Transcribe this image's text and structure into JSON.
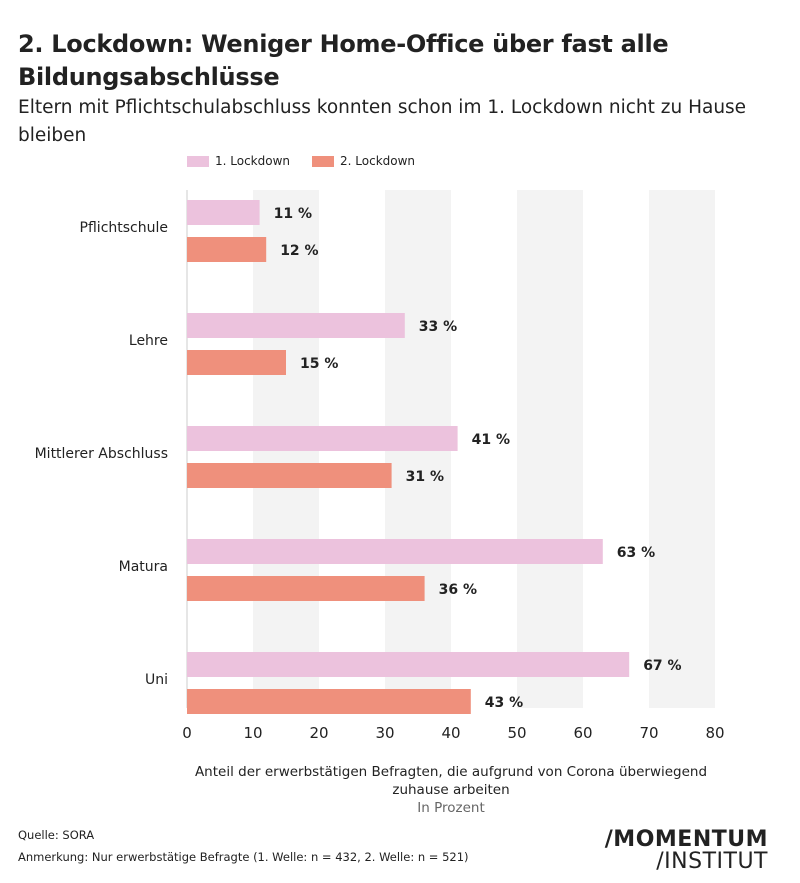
{
  "chart_data": {
    "type": "bar",
    "orientation": "horizontal",
    "title": "2. Lockdown: Weniger Home-Office über fast alle Bildungsabschlüsse",
    "subtitle": "Eltern mit Pflichtschulabschluss konnten schon im 1. Lockdown nicht zu Hause bleiben",
    "categories": [
      "Pflichtschule",
      "Lehre",
      "Mittlerer Abschluss",
      "Matura",
      "Uni"
    ],
    "series": [
      {
        "name": "1. Lockdown",
        "values": [
          11,
          33,
          41,
          63,
          67
        ],
        "color": "#ecc2dd"
      },
      {
        "name": "2. Lockdown",
        "values": [
          12,
          15,
          31,
          36,
          43
        ],
        "color": "#ef907c"
      }
    ],
    "value_suffix": " %",
    "xlabel": "Anteil der erwerbstätigen Befragten, die aufgrund von Corona überwiegend zuhause arbeiten",
    "xunit": "In Prozent",
    "xlim": [
      0,
      80
    ],
    "xticks": [
      0,
      10,
      20,
      30,
      40,
      50,
      60,
      70,
      80
    ],
    "grid": "alternating vertical bands",
    "legend": "top-left"
  },
  "footer": {
    "source": "Quelle: SORA",
    "note": "Anmerkung: Nur erwerbstätige Befragte (1. Welle: n = 432, 2. Welle: n = 521)"
  },
  "logo": {
    "line1": "/MOMENTUM",
    "line2": "/INSTITUT"
  }
}
